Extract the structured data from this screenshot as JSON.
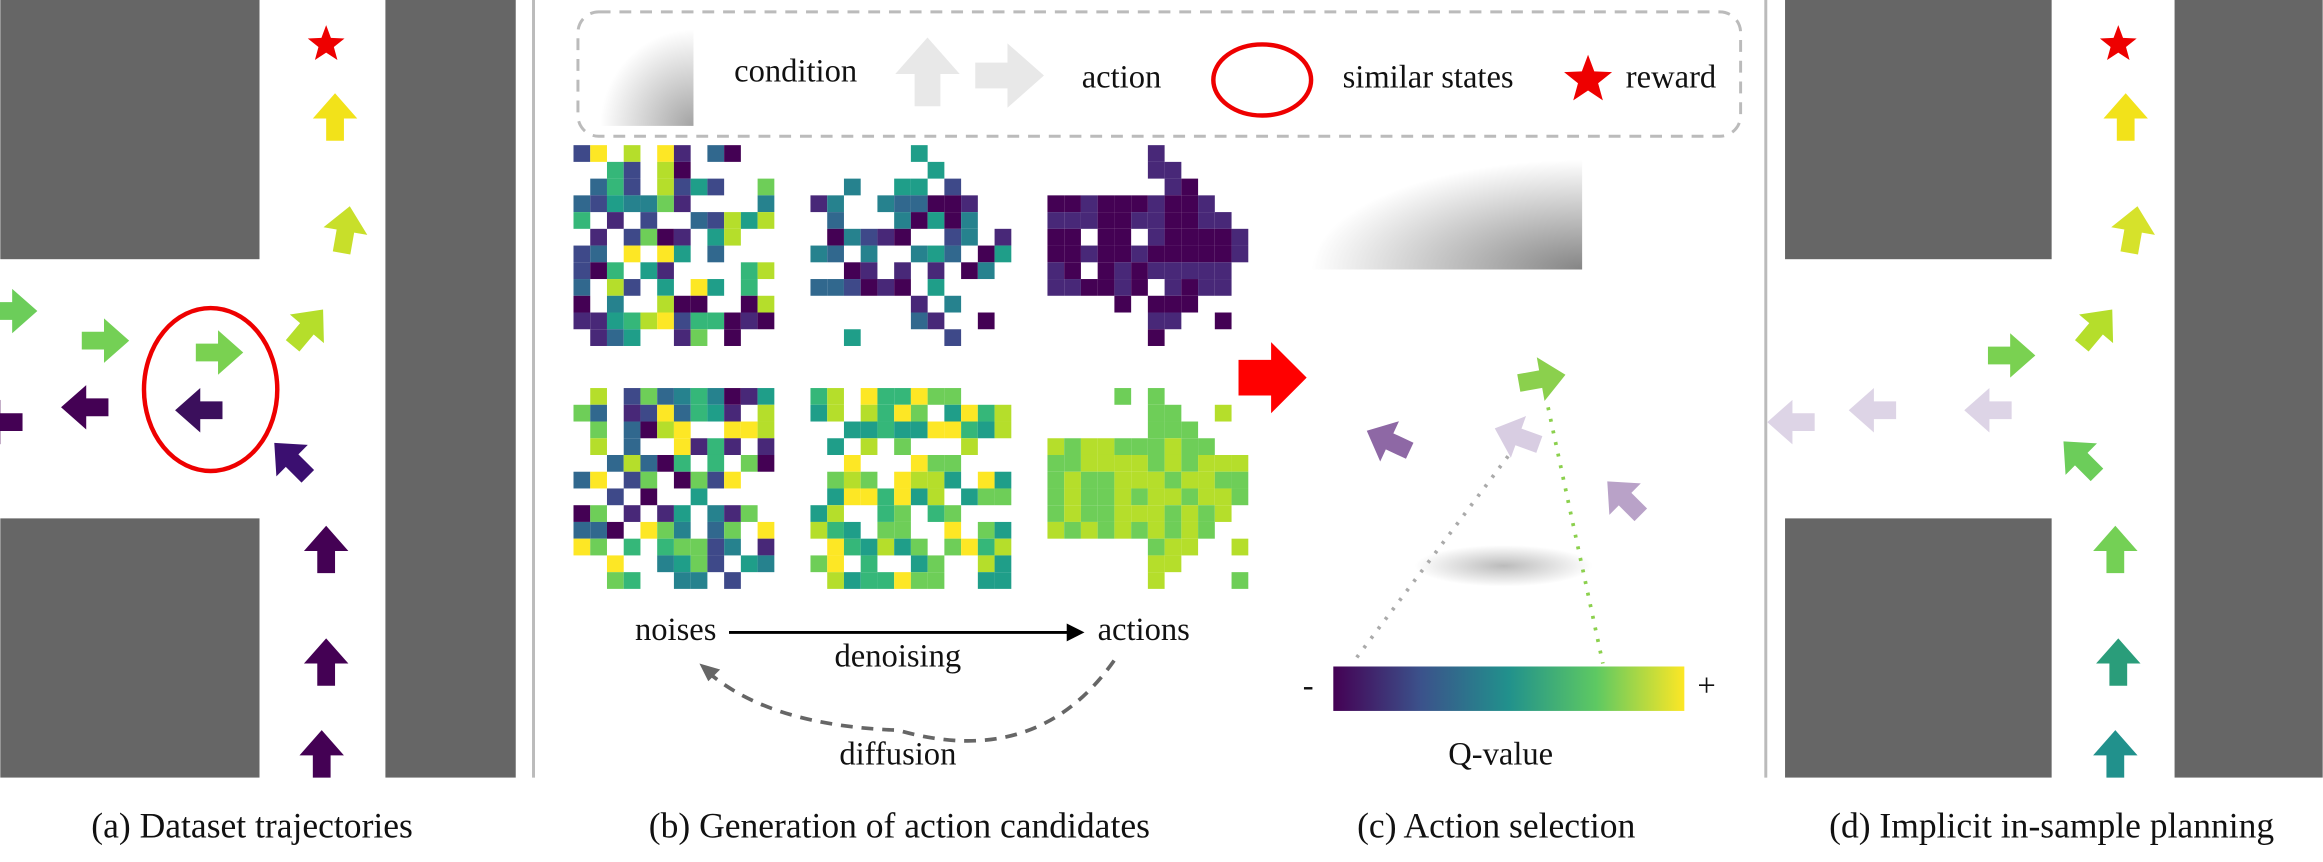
{
  "legend": {
    "condition": "condition",
    "action": "action",
    "similar_states": "similar states",
    "reward": "reward"
  },
  "panel_b": {
    "noises": "noises",
    "actions": "actions",
    "denoising": "denoising",
    "diffusion": "diffusion"
  },
  "panel_c": {
    "minus": "-",
    "plus": "+",
    "q_value": "Q-value"
  },
  "captions": [
    "(a) Dataset trajectories",
    "(b) Generation of action candidates",
    "(c)  Action selection",
    "(d)  Implicit in-sample planning"
  ]
}
